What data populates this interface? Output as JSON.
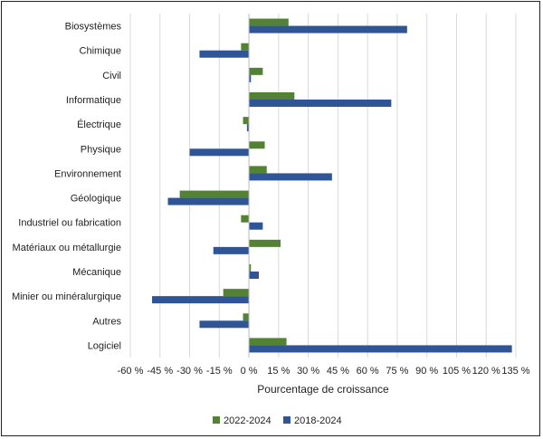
{
  "chart_data": {
    "type": "bar",
    "orientation": "horizontal",
    "categories": [
      "Biosystèmes",
      "Chimique",
      "Civil",
      "Informatique",
      "Électrique",
      "Physique",
      "Environnement",
      "Géologique",
      "Industriel ou fabrication",
      "Matériaux ou métallurgie",
      "Mécanique",
      "Minier ou minéralurgique",
      "Autres",
      "Logiciel"
    ],
    "series": [
      {
        "name": "2022-2024",
        "color": "#548235",
        "values": [
          20,
          -4,
          7,
          23,
          -3,
          8,
          9,
          -35,
          -4,
          16,
          1,
          -13,
          -3,
          19
        ]
      },
      {
        "name": "2018-2024",
        "color": "#2f5597",
        "values": [
          80,
          -25,
          1,
          72,
          -1,
          -30,
          42,
          -41,
          7,
          -18,
          5,
          -49,
          -25,
          133
        ]
      }
    ],
    "xlim": [
      -60,
      135
    ],
    "xticks": [
      -60,
      -45,
      -30,
      -15,
      0,
      15,
      30,
      45,
      60,
      75,
      90,
      105,
      120,
      135
    ],
    "xtick_labels": [
      "-60 %",
      "-45 %",
      "-30 %",
      "-15 %",
      "0 %",
      "15 %",
      "30 %",
      "45 %",
      "60 %",
      "75 %",
      "90 %",
      "105 %",
      "120 %",
      "135 %"
    ],
    "xlabel": "Pourcentage de croissance",
    "ylabel": "",
    "title": "",
    "grid": "vertical",
    "legend_position": "bottom"
  }
}
